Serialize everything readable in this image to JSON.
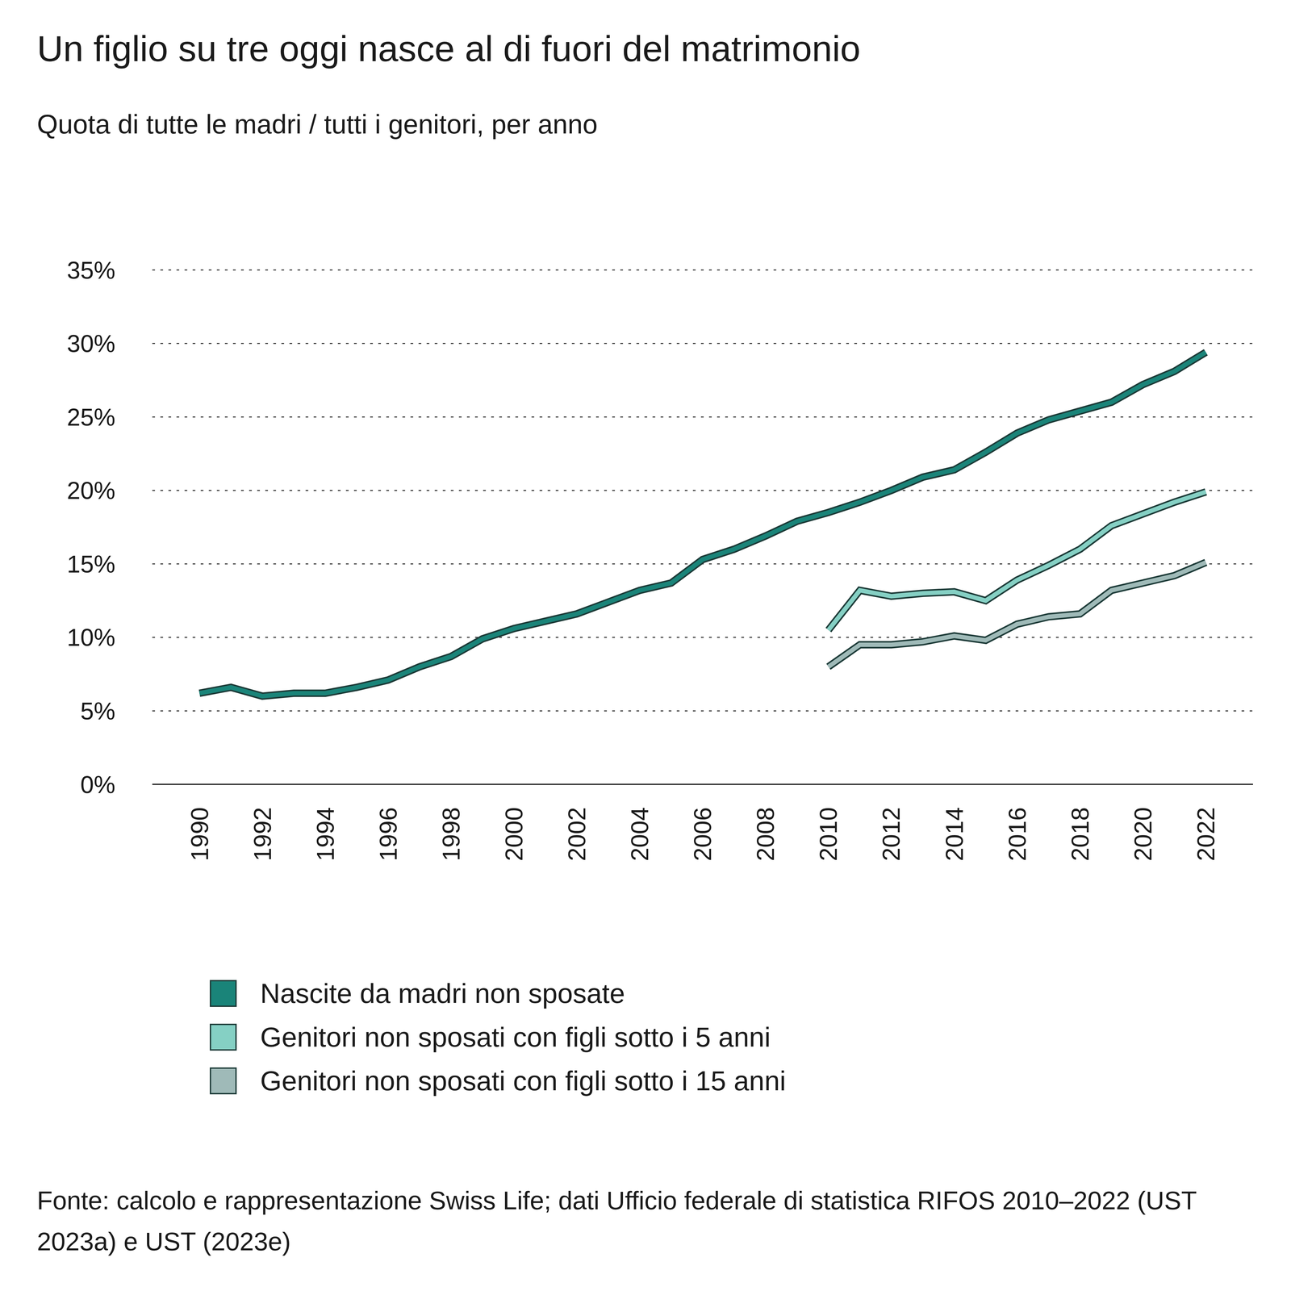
{
  "chart_data": {
    "type": "line",
    "title": "Un figlio su tre oggi nasce al di fuori del matrimonio",
    "subtitle": "Quota di tutte le madri / tutti i genitori, per anno",
    "source": "Fonte: calcolo e rappresentazione Swiss Life; dati Ufficio federale di statistica RIFOS 2010–2022 (UST 2023a) e UST (2023e)",
    "x": [
      1990,
      1991,
      1992,
      1993,
      1994,
      1995,
      1996,
      1997,
      1998,
      1999,
      2000,
      2001,
      2002,
      2003,
      2004,
      2005,
      2006,
      2007,
      2008,
      2009,
      2010,
      2011,
      2012,
      2013,
      2014,
      2015,
      2016,
      2017,
      2018,
      2019,
      2020,
      2021,
      2022
    ],
    "xlim": [
      1988.5,
      2023.5
    ],
    "xticks": [
      1990,
      1992,
      1994,
      1996,
      1998,
      2000,
      2002,
      2004,
      2006,
      2008,
      2010,
      2012,
      2014,
      2016,
      2018,
      2020,
      2022
    ],
    "ylim": [
      0,
      35
    ],
    "yticks": [
      {
        "value": 0,
        "label": "0%"
      },
      {
        "value": 5,
        "label": "5%"
      },
      {
        "value": 10,
        "label": "10%"
      },
      {
        "value": 15,
        "label": "15%"
      },
      {
        "value": 20,
        "label": "20%"
      },
      {
        "value": 25,
        "label": "25%"
      },
      {
        "value": 30,
        "label": "30%"
      },
      {
        "value": 35,
        "label": "35%"
      }
    ],
    "grid": true,
    "legend": "bottom",
    "series": [
      {
        "name": "Nascite da madri non sposate",
        "color": "#1a8479",
        "values": [
          6.2,
          6.6,
          6.0,
          6.2,
          6.2,
          6.6,
          7.1,
          8.0,
          8.7,
          9.9,
          10.6,
          11.1,
          11.6,
          12.4,
          13.2,
          13.7,
          15.3,
          16.0,
          16.9,
          17.9,
          18.5,
          19.2,
          20.0,
          20.9,
          21.4,
          22.6,
          23.9,
          24.8,
          25.4,
          26.0,
          27.2,
          28.1,
          29.4
        ]
      },
      {
        "name": "Genitori non sposati con figli sotto i 5 anni",
        "color": "#85d0c4",
        "values": [
          null,
          null,
          null,
          null,
          null,
          null,
          null,
          null,
          null,
          null,
          null,
          null,
          null,
          null,
          null,
          null,
          null,
          null,
          null,
          null,
          10.5,
          13.2,
          12.8,
          13.0,
          13.1,
          12.5,
          13.9,
          14.9,
          16.0,
          17.6,
          18.4,
          19.2,
          19.9
        ]
      },
      {
        "name": "Genitori non sposati con figli sotto i 15 anni",
        "color": "#9fbab8",
        "values": [
          null,
          null,
          null,
          null,
          null,
          null,
          null,
          null,
          null,
          null,
          null,
          null,
          null,
          null,
          null,
          null,
          null,
          null,
          null,
          null,
          8.0,
          9.5,
          9.5,
          9.7,
          10.1,
          9.8,
          10.9,
          11.4,
          11.6,
          13.2,
          13.7,
          14.2,
          15.1
        ]
      }
    ]
  }
}
